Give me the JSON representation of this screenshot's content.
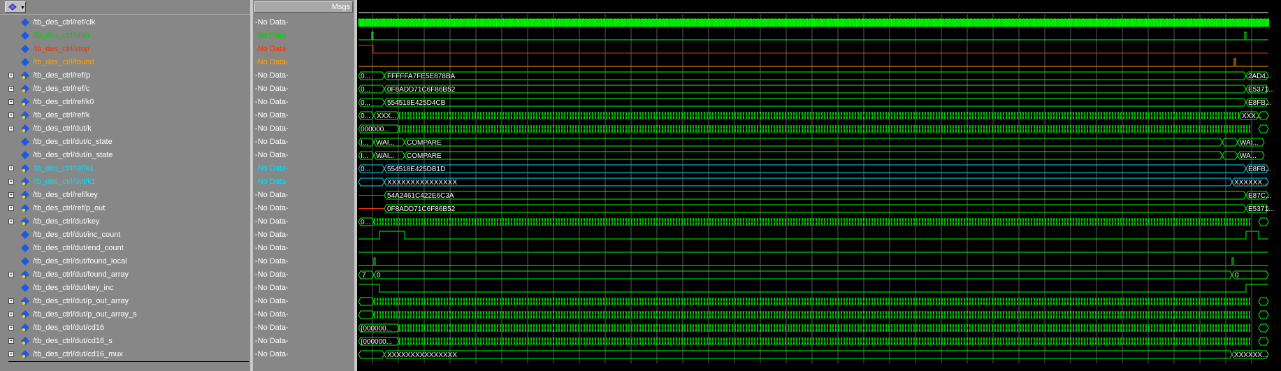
{
  "header": {
    "msgs_label": "Msgs",
    "toolbar_icon": "wave-toolbar-icon"
  },
  "colors": {
    "default": "#ffffff",
    "green": "#00d000",
    "red": "#ff3000",
    "orange": "#ffa000",
    "cyan": "#00e0ff",
    "wave": "#00ff00",
    "grid": "#5a5a5a"
  },
  "signals": [
    {
      "name": "/tb_des_ctrl/ref/clk",
      "value": "-No Data-",
      "expand": false,
      "icon": "diamond-icon",
      "color": "default",
      "wave": "clock"
    },
    {
      "name": "/tb_des_ctrl/start",
      "value": "-No Data-",
      "expand": false,
      "icon": "diamond-icon",
      "color": "green",
      "wave": "start"
    },
    {
      "name": "/tb_des_ctrl/stop",
      "value": "-No Data-",
      "expand": false,
      "icon": "diamond-icon",
      "color": "red",
      "wave": "stop"
    },
    {
      "name": "/tb_des_ctrl/found",
      "value": "-No Data-",
      "expand": false,
      "icon": "diamond-icon",
      "color": "orange",
      "wave": "found"
    },
    {
      "name": "/tb_des_ctrl/ref/p",
      "value": "-No Data-",
      "expand": true,
      "icon": "bus-diamond-icon",
      "color": "default",
      "wave": "bus",
      "segs": [
        "0...",
        "FFFFFA7FE5E878BA",
        "2AD4..."
      ],
      "color_wave": "#00ff00"
    },
    {
      "name": "/tb_des_ctrl/ref/c",
      "value": "-No Data-",
      "expand": true,
      "icon": "bus-diamond-icon",
      "color": "default",
      "wave": "bus",
      "segs": [
        "0...",
        "0F8ADD71C6F86B52",
        "E5371..."
      ]
    },
    {
      "name": "/tb_des_ctrl/ref/k0",
      "value": "-No Data-",
      "expand": true,
      "icon": "bus-diamond-icon",
      "color": "default",
      "wave": "bus",
      "segs": [
        "0...",
        "554518E425D4CB",
        "E8FB..."
      ]
    },
    {
      "name": "/tb_des_ctrl/ref/k",
      "value": "-No Data-",
      "expand": true,
      "icon": "bus-diamond-icon",
      "color": "default",
      "wave": "busdense",
      "segs": [
        "0...",
        "XXX...",
        "XXX..."
      ]
    },
    {
      "name": "/tb_des_ctrl/dut/k",
      "value": "-No Data-",
      "expand": true,
      "icon": "bus-diamond-icon",
      "color": "default",
      "wave": "busdense",
      "segs": [
        "000000...",
        "",
        ""
      ]
    },
    {
      "name": "/tb_des_ctrl/dut/c_state",
      "value": "-No Data-",
      "expand": false,
      "icon": "diamond-icon",
      "color": "default",
      "wave": "state",
      "segs": [
        "I...",
        "WAI...",
        "COMPARE",
        "WAI..."
      ]
    },
    {
      "name": "/tb_des_ctrl/dut/n_state",
      "value": "-No Data-",
      "expand": false,
      "icon": "diamond-icon",
      "color": "default",
      "wave": "state",
      "segs": [
        "I...",
        "WAI...",
        "COMPARE",
        "WA..."
      ]
    },
    {
      "name": "/tb_des_ctrl/ref/k1",
      "value": "-No Data-",
      "expand": true,
      "icon": "bus-diamond-icon",
      "color": "cyan",
      "wave": "bus",
      "segs": [
        "0...",
        "554518E425DB1D",
        "E8FB..."
      ]
    },
    {
      "name": "/tb_des_ctrl/dut/k1",
      "value": "-No Data-",
      "expand": true,
      "icon": "bus-diamond-icon",
      "color": "cyan",
      "wave": "busx",
      "segs": [
        "",
        "XXXXXXXXXXXXXXX",
        "XXXXXX..."
      ]
    },
    {
      "name": "/tb_des_ctrl/ref/key",
      "value": "-No Data-",
      "expand": true,
      "icon": "bus-diamond-icon",
      "color": "default",
      "wave": "busred",
      "segs": [
        "",
        "54A2461C422E6C3A",
        "E87C..."
      ]
    },
    {
      "name": "/tb_des_ctrl/ref/p_out",
      "value": "-No Data-",
      "expand": true,
      "icon": "bus-diamond-icon",
      "color": "default",
      "wave": "busred",
      "segs": [
        "",
        "0F8ADD71C6F86B52",
        "E5371..."
      ]
    },
    {
      "name": "/tb_des_ctrl/dut/key",
      "value": "-No Data-",
      "expand": true,
      "icon": "bus-diamond-icon",
      "color": "default",
      "wave": "busdense",
      "segs": [
        "0...",
        "",
        ""
      ]
    },
    {
      "name": "/tb_des_ctrl/dut/inc_count",
      "value": "-No Data-",
      "expand": false,
      "icon": "diamond-icon",
      "color": "default",
      "wave": "inc"
    },
    {
      "name": "/tb_des_ctrl/dut/end_count",
      "value": "-No Data-",
      "expand": false,
      "icon": "diamond-icon",
      "color": "default",
      "wave": "low"
    },
    {
      "name": "/tb_des_ctrl/dut/found_local",
      "value": "-No Data-",
      "expand": false,
      "icon": "diamond-icon",
      "color": "default",
      "wave": "pulses"
    },
    {
      "name": "/tb_des_ctrl/dut/found_array",
      "value": "-No Data-",
      "expand": true,
      "icon": "bus-diamond-icon",
      "color": "default",
      "wave": "busarr",
      "segs": [
        "7",
        "0",
        "0"
      ]
    },
    {
      "name": "/tb_des_ctrl/dut/key_inc",
      "value": "-No Data-",
      "expand": false,
      "icon": "diamond-icon",
      "color": "default",
      "wave": "keyinc"
    },
    {
      "name": "/tb_des_ctrl/dut/p_out_array",
      "value": "-No Data-",
      "expand": true,
      "icon": "bus-diamond-icon",
      "color": "default",
      "wave": "busdense",
      "segs": [
        "",
        "",
        ""
      ]
    },
    {
      "name": "/tb_des_ctrl/dut/p_out_array_s",
      "value": "-No Data-",
      "expand": true,
      "icon": "bus-diamond-icon",
      "color": "default",
      "wave": "busdense",
      "segs": [
        "",
        "",
        ""
      ]
    },
    {
      "name": "/tb_des_ctrl/dut/cd16",
      "value": "-No Data-",
      "expand": true,
      "icon": "bus-diamond-icon",
      "color": "default",
      "wave": "busdense",
      "segs": [
        "{000000...",
        "",
        ""
      ]
    },
    {
      "name": "/tb_des_ctrl/dut/cd16_s",
      "value": "-No Data-",
      "expand": true,
      "icon": "bus-diamond-icon",
      "color": "default",
      "wave": "busdense",
      "segs": [
        "{000000...",
        "",
        ""
      ]
    },
    {
      "name": "/tb_des_ctrl/dut/cd16_mux",
      "value": "-No Data-",
      "expand": true,
      "icon": "bus-diamond-icon",
      "color": "default",
      "wave": "busx",
      "segs": [
        "",
        "XXXXXXXXXXXXXXX",
        "XXXXXX..."
      ]
    }
  ]
}
